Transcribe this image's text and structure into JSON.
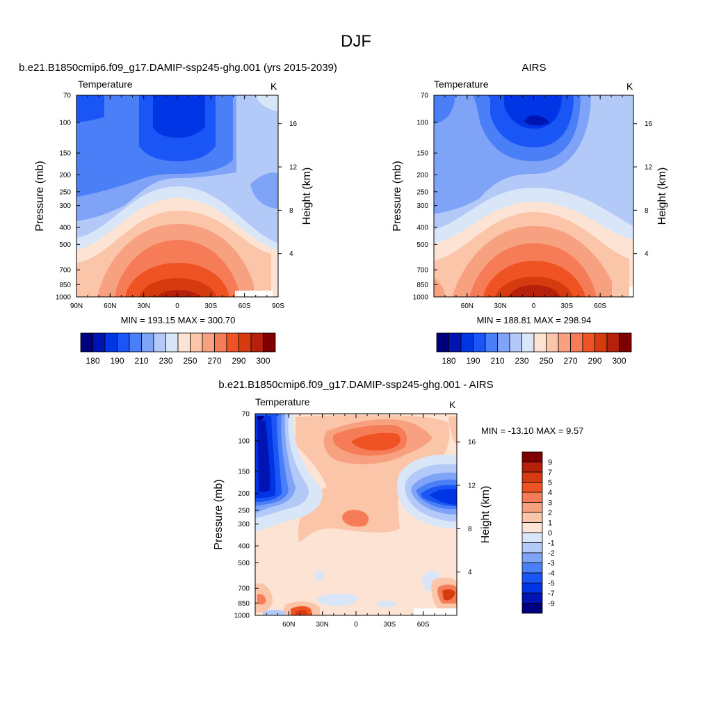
{
  "figure": {
    "title": "DJF"
  },
  "panels": {
    "model": {
      "title": "b.e21.B1850cmip6.f09_g17.DAMIP-ssp245-ghg.001 (yrs 2015-2039)",
      "left_label": "Temperature",
      "unit": "K",
      "ylabel_left": "Pressure (mb)",
      "ylabel_right": "Height (km)",
      "x_ticks": [
        "90N",
        "60N",
        "30N",
        "0",
        "30S",
        "60S",
        "90S"
      ],
      "p_ticks": [
        "70",
        "100",
        "150",
        "200",
        "250",
        "300",
        "400",
        "500",
        "700",
        "850",
        "1000"
      ],
      "h_ticks": [
        "16",
        "12",
        "8",
        "4"
      ],
      "stats": "MIN = 193.15   MAX = 300.70"
    },
    "obs": {
      "title": "AIRS",
      "left_label": "Temperature",
      "unit": "K",
      "ylabel_left": "Pressure (mb)",
      "ylabel_right": "Height (km)",
      "x_ticks": [
        "60N",
        "30N",
        "0",
        "30S",
        "60S"
      ],
      "p_ticks": [
        "70",
        "100",
        "150",
        "200",
        "250",
        "300",
        "400",
        "500",
        "700",
        "850",
        "1000"
      ],
      "h_ticks": [
        "16",
        "12",
        "8",
        "4"
      ],
      "stats": "MIN = 188.81   MAX = 298.94"
    },
    "diff": {
      "title": "b.e21.B1850cmip6.f09_g17.DAMIP-ssp245-ghg.001 - AIRS",
      "left_label": "Temperature",
      "unit": "K",
      "ylabel_left": "Pressure (mb)",
      "ylabel_right": "Height (km)",
      "x_ticks": [
        "60N",
        "30N",
        "0",
        "30S",
        "60S"
      ],
      "p_ticks": [
        "70",
        "100",
        "150",
        "200",
        "250",
        "300",
        "400",
        "500",
        "700",
        "850",
        "1000"
      ],
      "h_ticks": [
        "16",
        "12",
        "8",
        "4"
      ],
      "stats": "MIN = -13.10   MAX =   9.57"
    }
  },
  "colorbars": {
    "abs": {
      "labels": [
        "180",
        "190",
        "210",
        "230",
        "250",
        "270",
        "290",
        "300"
      ],
      "colors": [
        "#00007f",
        "#0014b3",
        "#0035e6",
        "#1a55f5",
        "#4a7ff7",
        "#7fa3f7",
        "#b3c9f7",
        "#d9e6f7",
        "#fce3d3",
        "#fbc5a9",
        "#f8a181",
        "#f57c56",
        "#ef5323",
        "#d63b10",
        "#b5210b",
        "#7f0000"
      ]
    },
    "diff": {
      "labels": [
        "9",
        "7",
        "5",
        "4",
        "3",
        "2",
        "1",
        "0",
        "-1",
        "-2",
        "-3",
        "-4",
        "-5",
        "-7",
        "-9"
      ],
      "colors": [
        "#7f0000",
        "#b5210b",
        "#d63b10",
        "#ef5323",
        "#f57c56",
        "#f8a181",
        "#fbc5a9",
        "#fce3d3",
        "#d9e6f7",
        "#b3c9f7",
        "#7fa3f7",
        "#4a7ff7",
        "#1a55f5",
        "#0035e6",
        "#0014b3",
        "#00007f"
      ]
    }
  },
  "chart_data": [
    {
      "type": "heatmap",
      "title": "b.e21.B1850cmip6.f09_g17.DAMIP-ssp245-ghg.001 (yrs 2015-2039)",
      "xlabel": "",
      "ylabel": "Pressure (mb)",
      "x": [
        "90N",
        "60N",
        "30N",
        "0",
        "30S",
        "60S",
        "90S"
      ],
      "y": [
        70,
        100,
        150,
        200,
        250,
        300,
        400,
        500,
        700,
        850,
        1000
      ],
      "zmin": 193.15,
      "zmax": 300.7,
      "unit": "K"
    },
    {
      "type": "heatmap",
      "title": "AIRS",
      "xlabel": "",
      "ylabel": "Pressure (mb)",
      "x": [
        "60N",
        "30N",
        "0",
        "30S",
        "60S"
      ],
      "y": [
        70,
        100,
        150,
        200,
        250,
        300,
        400,
        500,
        700,
        850,
        1000
      ],
      "zmin": 188.81,
      "zmax": 298.94,
      "unit": "K"
    },
    {
      "type": "heatmap",
      "title": "b.e21.B1850cmip6.f09_g17.DAMIP-ssp245-ghg.001 - AIRS",
      "xlabel": "",
      "ylabel": "Pressure (mb)",
      "x": [
        "60N",
        "30N",
        "0",
        "30S",
        "60S"
      ],
      "y": [
        70,
        100,
        150,
        200,
        250,
        300,
        400,
        500,
        700,
        850,
        1000
      ],
      "zmin": -13.1,
      "zmax": 9.57,
      "unit": "K"
    }
  ]
}
